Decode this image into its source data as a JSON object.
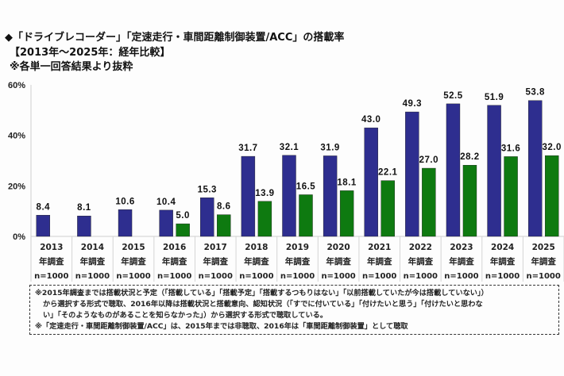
{
  "header": {
    "title": "◆「ドライブレコーダー」「定速走行・車間距離制御装置/ACC」の搭載率",
    "period": "【2013年～2025年：経年比較】",
    "note": "※各単一回答結果より抜粋"
  },
  "chart_data": {
    "type": "bar",
    "title": "「ドライブレコーダー」「定速走行・車間距離制御装置/ACC」の搭載率",
    "xlabel": "",
    "ylabel": "",
    "ylim": [
      0,
      60
    ],
    "yticks": [
      "0%",
      "20%",
      "40%",
      "60%"
    ],
    "ytick_values": [
      0,
      20,
      40,
      60
    ],
    "grid": false,
    "legend": "none",
    "categories": [
      "2013",
      "2014",
      "2015",
      "2016",
      "2017",
      "2018",
      "2019",
      "2020",
      "2021",
      "2022",
      "2023",
      "2024",
      "2025"
    ],
    "category_suffix": "年調査",
    "sample_size": "n=1000",
    "series": [
      {
        "name": "ドライブレコーダー",
        "color": "#2e2e8f",
        "values": [
          8.4,
          8.1,
          10.6,
          10.4,
          15.3,
          31.7,
          32.1,
          31.9,
          43.0,
          49.3,
          52.5,
          51.9,
          53.8
        ]
      },
      {
        "name": "定速走行・車間距離制御装置/ACC",
        "color": "#0e7a10",
        "values": [
          null,
          null,
          null,
          5.0,
          8.6,
          13.9,
          16.5,
          18.1,
          22.1,
          27.0,
          28.2,
          31.6,
          32.0
        ]
      }
    ]
  },
  "footnotes": [
    "※2015年調査までは搭載状況と予定（「搭載している」「搭載予定」「搭載するつもりはない」「以前搭載していたが今は搭載していない」）",
    "から選択する形式で聴取、2016年以降は搭載状況と搭載意向、認知状況（「すでに付いている」「付けたいと思う」「付けたいと思わな",
    "い」「そのようなものがあることを知らなかった」）から選択する形式で聴取している。",
    "※「定速走行・車間距離制御装置/ACC」は、2015年までは非聴取、2016年は「車間距離制御装置」として聴取"
  ]
}
